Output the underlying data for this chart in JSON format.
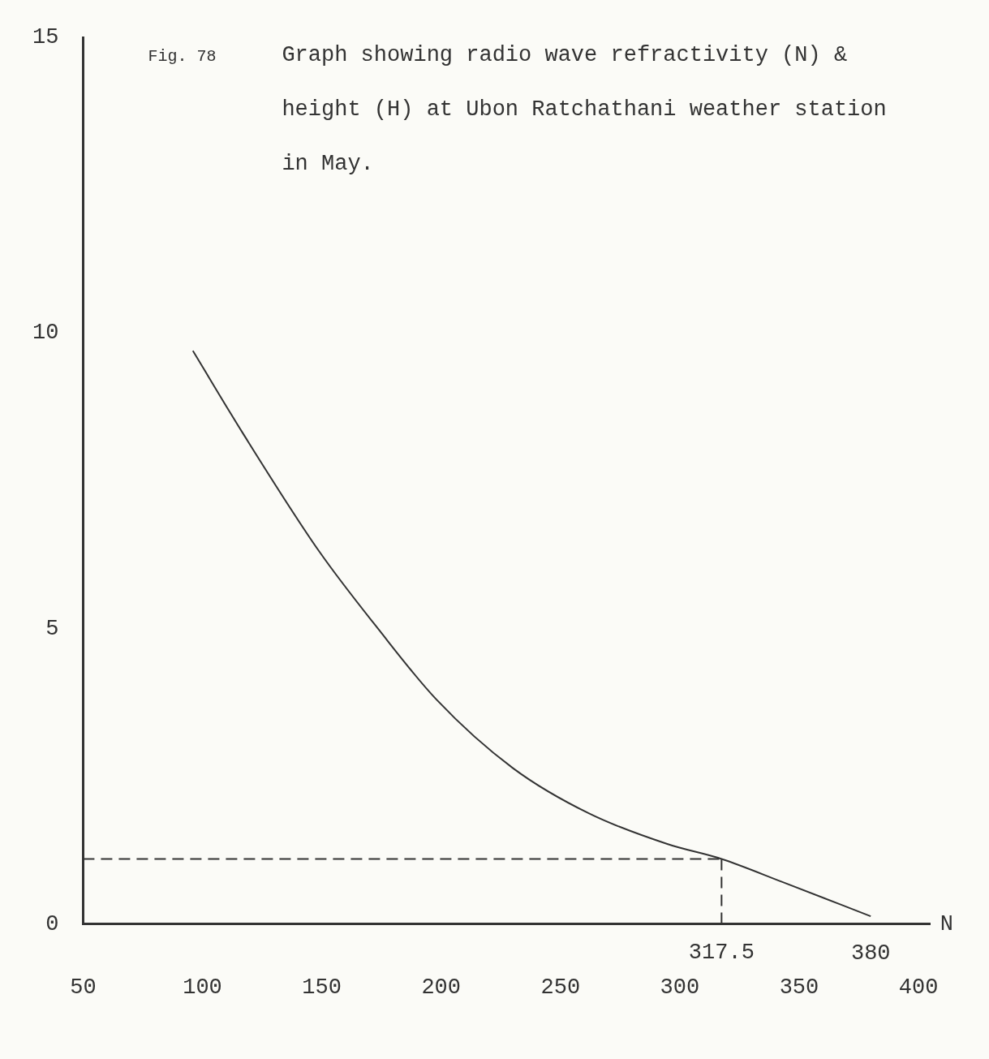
{
  "chart_data": {
    "type": "line",
    "title": "Graph showing radio wave refractivity (N) & height (H) at Ubon Ratchathani weather station in May.",
    "xlabel": "N",
    "annotations": [
      "Fig. 78",
      {
        "text": "380",
        "x": 380,
        "y": 0.13
      }
    ],
    "x": [
      96,
      117,
      149,
      173.5,
      198,
      230,
      262,
      295,
      317.5,
      343,
      380
    ],
    "values": [
      9.7,
      8.3,
      6.3,
      5.0,
      3.8,
      2.64,
      1.87,
      1.35,
      1.1,
      0.71,
      0.13
    ],
    "color": "#333333",
    "marker": "none",
    "line_style": "solid",
    "xlim": [
      50,
      405
    ],
    "xticks": [
      50,
      100,
      150,
      200,
      250,
      300,
      350,
      400
    ],
    "ylim": [
      0,
      15
    ],
    "yticks": [
      0,
      5,
      10,
      15
    ],
    "ref_lines": [
      {
        "axis": "x",
        "value": 317.5,
        "line_style": "dashed",
        "label": "317.5"
      },
      {
        "axis": "y",
        "value": 1.1,
        "line_style": "dashed"
      }
    ],
    "legend": false
  }
}
